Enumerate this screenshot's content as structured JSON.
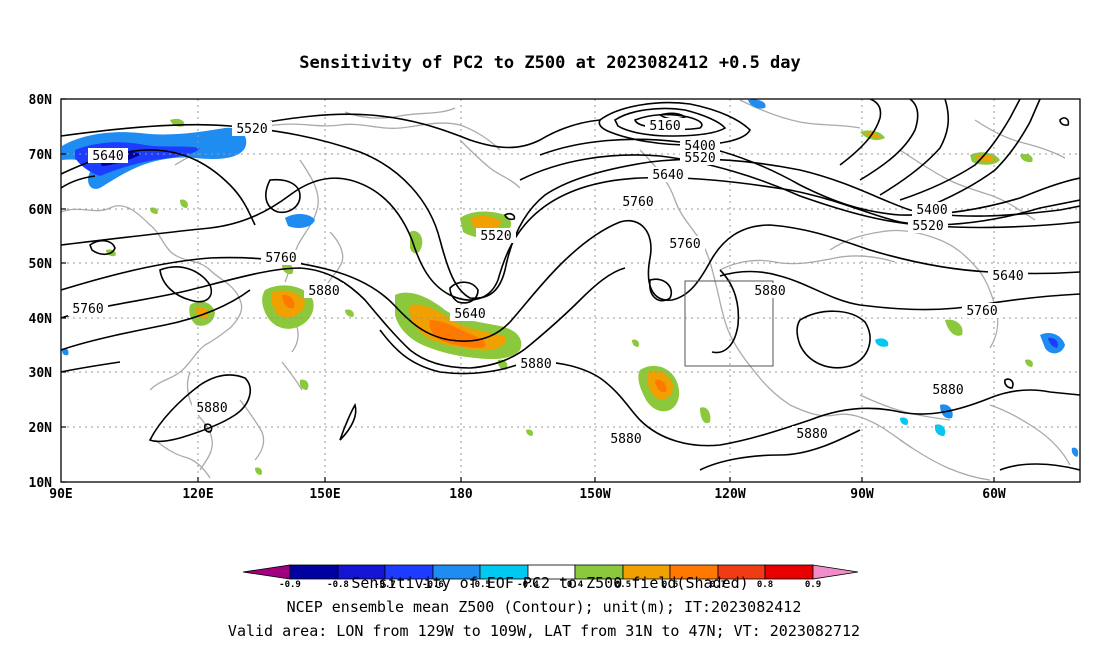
{
  "title": "Sensitivity of PC2 to Z500 at 2023082412 +0.5 day",
  "map": {
    "lon_range": [
      "90E",
      "50W"
    ],
    "lat_range": [
      "10N",
      "80N"
    ],
    "lon_ticks": [
      "90E",
      "120E",
      "150E",
      "180",
      "150W",
      "120W",
      "90W",
      "60W"
    ],
    "lat_ticks": [
      "80N",
      "70N",
      "60N",
      "50N",
      "40N",
      "30N",
      "20N",
      "10N"
    ],
    "valid_box": {
      "lon": [
        "129W",
        "109W"
      ],
      "lat": [
        "31N",
        "47N"
      ]
    }
  },
  "contour_labels": [
    {
      "text": "5520"
    },
    {
      "text": "5640"
    },
    {
      "text": "5160"
    },
    {
      "text": "5400"
    },
    {
      "text": "5520"
    },
    {
      "text": "5640"
    },
    {
      "text": "5760"
    },
    {
      "text": "5520"
    },
    {
      "text": "5760"
    },
    {
      "text": "5880"
    },
    {
      "text": "5640"
    },
    {
      "text": "5760"
    },
    {
      "text": "5760"
    },
    {
      "text": "5880"
    },
    {
      "text": "5400"
    },
    {
      "text": "5520"
    },
    {
      "text": "5640"
    },
    {
      "text": "5760"
    },
    {
      "text": "5880"
    },
    {
      "text": "5880"
    },
    {
      "text": "5880"
    },
    {
      "text": "5880"
    },
    {
      "text": "5880"
    }
  ],
  "colorbar": {
    "labels": [
      "-0.9",
      "-0.8",
      "-0.7",
      "-0.6",
      "-0.5",
      "-0.4",
      "0.4",
      "0.5",
      "0.6",
      "0.7",
      "0.8",
      "0.9"
    ],
    "colors": [
      "#a0007f",
      "#0000a0",
      "#1414d2",
      "#1e3cff",
      "#1e8cf0",
      "#00c8f0",
      "#ffffff",
      "#8cc83c",
      "#f0a000",
      "#ff7800",
      "#f03c14",
      "#e60000",
      "#f08cc8"
    ],
    "caption": "Sensitivity of EOF PC2 to Z500 field(Shaded)"
  },
  "footer": {
    "line1": "NCEP ensemble mean Z500 (Contour); unit(m); IT:2023082412",
    "line2": "Valid area: LON from 129W to 109W, LAT from 31N to 47N; VT: 2023082712"
  }
}
